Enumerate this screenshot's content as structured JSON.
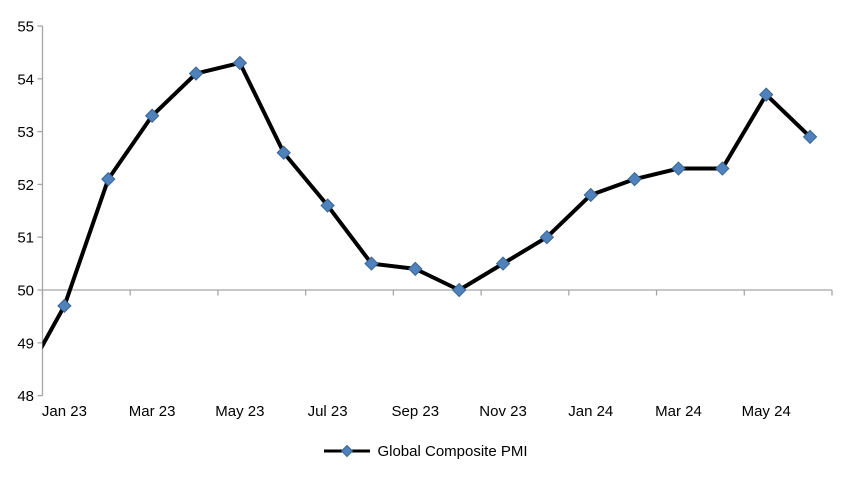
{
  "chart": {
    "legend": {
      "label": "Global Composite PMI"
    }
  },
  "chart_data": {
    "type": "line",
    "title": "",
    "series": [
      {
        "name": "Global Composite PMI",
        "x": [
          "Dec 22",
          "Jan 23",
          "Feb 23",
          "Mar 23",
          "Apr 23",
          "May 23",
          "Jun 23",
          "Jul 23",
          "Aug 23",
          "Sep 23",
          "Oct 23",
          "Nov 23",
          "Dec 23",
          "Jan 24",
          "Feb 24",
          "Mar 24",
          "Apr 24",
          "May 24",
          "Jun 24"
        ],
        "values": [
          48.2,
          49.7,
          52.1,
          53.3,
          54.1,
          54.3,
          52.6,
          51.6,
          50.5,
          50.4,
          50.0,
          50.5,
          51.0,
          51.8,
          52.1,
          52.3,
          52.3,
          53.7,
          52.9
        ],
        "marker": "diamond"
      }
    ],
    "first_point_clipped_by_axis": true,
    "x_axis": {
      "tick_labels": [
        "Jan 23",
        "Mar 23",
        "May 23",
        "Jul 23",
        "Sep 23",
        "Nov 23",
        "Jan 24",
        "Mar 24",
        "May 24"
      ],
      "label_interval_months": 2,
      "axis_at_value": 50
    },
    "y_axis": {
      "min": 48,
      "max": 55,
      "ticks": [
        48,
        49,
        50,
        51,
        52,
        53,
        54,
        55
      ]
    },
    "legend_position": "bottom",
    "grid": false,
    "colors": {
      "line": "#000000",
      "marker_fill": "#4f81bd",
      "marker_edge": "#3a6791",
      "axis": "#a6a6a6",
      "text": "#000000"
    }
  }
}
